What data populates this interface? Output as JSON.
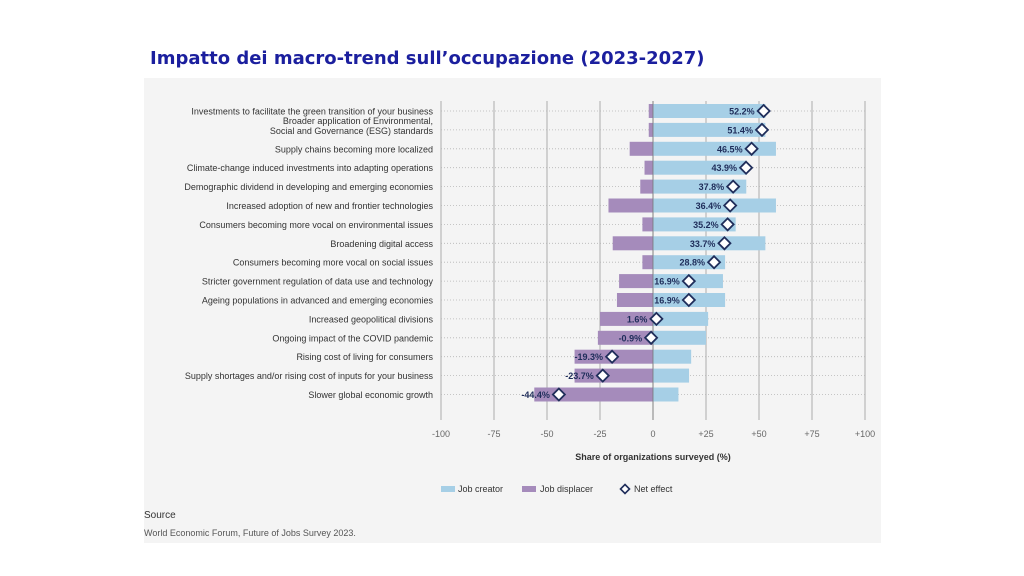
{
  "slide": {
    "title": "Impatto dei macro-trend sull’occupazione (2023-2027)",
    "source_label": "Source",
    "source_text": "World Economic Forum, Future of Jobs Survey 2023."
  },
  "chart_data": {
    "type": "bar",
    "orientation": "horizontal-diverging",
    "categories": [
      [
        "Investments to facilitate the green transition of your business"
      ],
      [
        "Broader application of Environmental,",
        "Social and Governance (ESG) standards"
      ],
      [
        "Supply chains becoming more localized"
      ],
      [
        "Climate-change induced investments into adapting operations"
      ],
      [
        "Demographic dividend in developing and emerging economies"
      ],
      [
        "Increased adoption of new and frontier technologies"
      ],
      [
        "Consumers becoming more vocal on environmental issues"
      ],
      [
        "Broadening digital access"
      ],
      [
        "Consumers becoming more vocal on social issues"
      ],
      [
        "Stricter government regulation of data use and technology"
      ],
      [
        "Ageing populations in advanced and emerging economies"
      ],
      [
        "Increased geopolitical divisions"
      ],
      [
        "Ongoing impact of the COVID pandemic"
      ],
      [
        "Rising cost of living for consumers"
      ],
      [
        "Supply shortages and/or rising cost of inputs for your business"
      ],
      [
        "Slower global economic growth"
      ]
    ],
    "series": [
      {
        "name": "Job creator",
        "color": "#a6cfe6",
        "values": [
          53,
          53,
          58,
          44,
          44,
          58,
          39,
          53,
          34,
          33,
          34,
          26,
          25,
          18,
          17,
          12
        ]
      },
      {
        "name": "Job displacer",
        "color": "#a58bbb",
        "values": [
          -2,
          -2,
          -11,
          -4,
          -6,
          -21,
          -5,
          -19,
          -5,
          -16,
          -17,
          -25,
          -26,
          -37,
          -37,
          -56
        ]
      },
      {
        "name": "Net effect",
        "marker": "diamond",
        "color": "#1f2d5a",
        "values": [
          52.2,
          51.4,
          46.5,
          43.9,
          37.8,
          36.4,
          35.2,
          33.7,
          28.8,
          16.9,
          16.9,
          1.6,
          -0.9,
          -19.3,
          -23.7,
          -44.4
        ],
        "labels": [
          "52.2%",
          "51.4%",
          "46.5%",
          "43.9%",
          "37.8%",
          "36.4%",
          "35.2%",
          "33.7%",
          "28.8%",
          "16.9%",
          "16.9%",
          "1.6%",
          "-0.9%",
          "-19.3%",
          "-23.7%",
          "-44.4%"
        ]
      }
    ],
    "xlim": [
      -100,
      100
    ],
    "xticks": [
      -100,
      -75,
      -50,
      -25,
      0,
      25,
      50,
      75,
      100
    ],
    "xtick_labels": [
      "-100",
      "-75",
      "-50",
      "-25",
      "0",
      "+25",
      "+50",
      "+75",
      "+100"
    ],
    "xlabel": "Share of organizations surveyed (%)",
    "legend": [
      "Job creator",
      "Job displacer",
      "Net effect"
    ],
    "legend_position": "bottom",
    "grid": "vertical-dotted"
  }
}
